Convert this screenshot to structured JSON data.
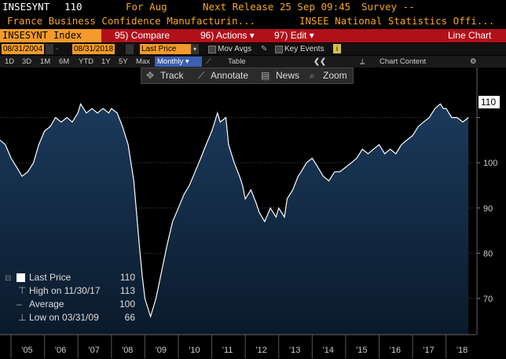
{
  "header": {
    "ticker": "INSESYNT",
    "last": "110",
    "for_label": "For Aug",
    "next_release": "Next Release 25 Sep 09:45",
    "survey": "Survey --",
    "description": "France Business Confidence Manufacturin...",
    "source": "INSEE National Statistics Offi..."
  },
  "menu": {
    "security": "INSESYNT Index",
    "compare_num": "95)",
    "compare": "Compare",
    "actions_num": "96)",
    "actions": "Actions",
    "edit_num": "97)",
    "edit": "Edit",
    "chart_type": "Line Chart"
  },
  "dates": {
    "start": "08/31/2004",
    "end": "08/31/2018",
    "field": "Last Price",
    "mov_avgs": "Mov Avgs",
    "key_events": "Key Events"
  },
  "periods": {
    "items": [
      "1D",
      "3D",
      "1M",
      "6M",
      "YTD",
      "1Y",
      "5Y",
      "Max"
    ],
    "frequency": "Monthly",
    "table": "Table",
    "chart_content": "Chart Content"
  },
  "toolbar": {
    "track": "Track",
    "annotate": "Annotate",
    "news": "News",
    "zoom": "Zoom"
  },
  "legend": {
    "last_price_label": "Last Price",
    "last_price_value": "110",
    "high_label": "High on 11/30/17",
    "high_value": "113",
    "average_label": "Average",
    "average_value": "100",
    "low_label": "Low on 03/31/09",
    "low_value": "66"
  },
  "colors": {
    "accent": "#f39a2b",
    "menu_bar": "#b0101a",
    "series_line": "#ffffff",
    "area_top": "#16324f",
    "area_bottom": "#0b1c2e"
  },
  "chart_data": {
    "type": "area",
    "series_name": "Last Price",
    "x_ticks": [
      "'05",
      "'06",
      "'07",
      "'08",
      "'09",
      "'10",
      "'11",
      "'12",
      "'13",
      "'14",
      "'15",
      "'16",
      "'17",
      "'18"
    ],
    "y_ticks": [
      70,
      80,
      90,
      100,
      110
    ],
    "last_value_label": "110",
    "ylim": [
      62,
      120
    ],
    "xlim": [
      2004.67,
      2018.9
    ],
    "points": [
      [
        2004.67,
        105
      ],
      [
        2004.83,
        104
      ],
      [
        2005.0,
        101
      ],
      [
        2005.17,
        99
      ],
      [
        2005.33,
        97
      ],
      [
        2005.5,
        98
      ],
      [
        2005.67,
        100
      ],
      [
        2005.83,
        104
      ],
      [
        2006.0,
        107
      ],
      [
        2006.17,
        108
      ],
      [
        2006.33,
        110
      ],
      [
        2006.5,
        109
      ],
      [
        2006.67,
        110
      ],
      [
        2006.83,
        109
      ],
      [
        2007.0,
        111
      ],
      [
        2007.08,
        113
      ],
      [
        2007.25,
        111
      ],
      [
        2007.42,
        112
      ],
      [
        2007.58,
        111
      ],
      [
        2007.75,
        112
      ],
      [
        2007.92,
        111
      ],
      [
        2008.0,
        112
      ],
      [
        2008.17,
        111
      ],
      [
        2008.33,
        108
      ],
      [
        2008.5,
        104
      ],
      [
        2008.67,
        96
      ],
      [
        2008.83,
        82
      ],
      [
        2008.92,
        75
      ],
      [
        2009.0,
        70
      ],
      [
        2009.17,
        66
      ],
      [
        2009.33,
        70
      ],
      [
        2009.5,
        76
      ],
      [
        2009.67,
        82
      ],
      [
        2009.83,
        87
      ],
      [
        2010.0,
        90
      ],
      [
        2010.17,
        93
      ],
      [
        2010.33,
        95
      ],
      [
        2010.5,
        98
      ],
      [
        2010.67,
        101
      ],
      [
        2010.83,
        104
      ],
      [
        2011.0,
        107
      ],
      [
        2011.17,
        111
      ],
      [
        2011.25,
        109
      ],
      [
        2011.42,
        110
      ],
      [
        2011.5,
        104
      ],
      [
        2011.67,
        100
      ],
      [
        2011.83,
        97
      ],
      [
        2011.92,
        95
      ],
      [
        2012.0,
        92
      ],
      [
        2012.17,
        94
      ],
      [
        2012.33,
        91
      ],
      [
        2012.42,
        89
      ],
      [
        2012.58,
        87
      ],
      [
        2012.75,
        90
      ],
      [
        2012.92,
        88
      ],
      [
        2013.0,
        90
      ],
      [
        2013.17,
        88
      ],
      [
        2013.25,
        92
      ],
      [
        2013.42,
        94
      ],
      [
        2013.58,
        97
      ],
      [
        2013.67,
        98
      ],
      [
        2013.83,
        100
      ],
      [
        2014.0,
        101
      ],
      [
        2014.17,
        99
      ],
      [
        2014.33,
        97
      ],
      [
        2014.5,
        96
      ],
      [
        2014.67,
        98
      ],
      [
        2014.83,
        98
      ],
      [
        2015.0,
        99
      ],
      [
        2015.17,
        100
      ],
      [
        2015.33,
        101
      ],
      [
        2015.5,
        103
      ],
      [
        2015.67,
        102
      ],
      [
        2015.83,
        103
      ],
      [
        2016.0,
        104
      ],
      [
        2016.17,
        102
      ],
      [
        2016.33,
        103
      ],
      [
        2016.5,
        102
      ],
      [
        2016.67,
        104
      ],
      [
        2016.83,
        105
      ],
      [
        2017.0,
        106
      ],
      [
        2017.17,
        108
      ],
      [
        2017.33,
        109
      ],
      [
        2017.5,
        110
      ],
      [
        2017.67,
        112
      ],
      [
        2017.83,
        113
      ],
      [
        2017.92,
        112
      ],
      [
        2018.0,
        112
      ],
      [
        2018.17,
        110
      ],
      [
        2018.33,
        110
      ],
      [
        2018.5,
        109
      ],
      [
        2018.67,
        110
      ]
    ]
  }
}
